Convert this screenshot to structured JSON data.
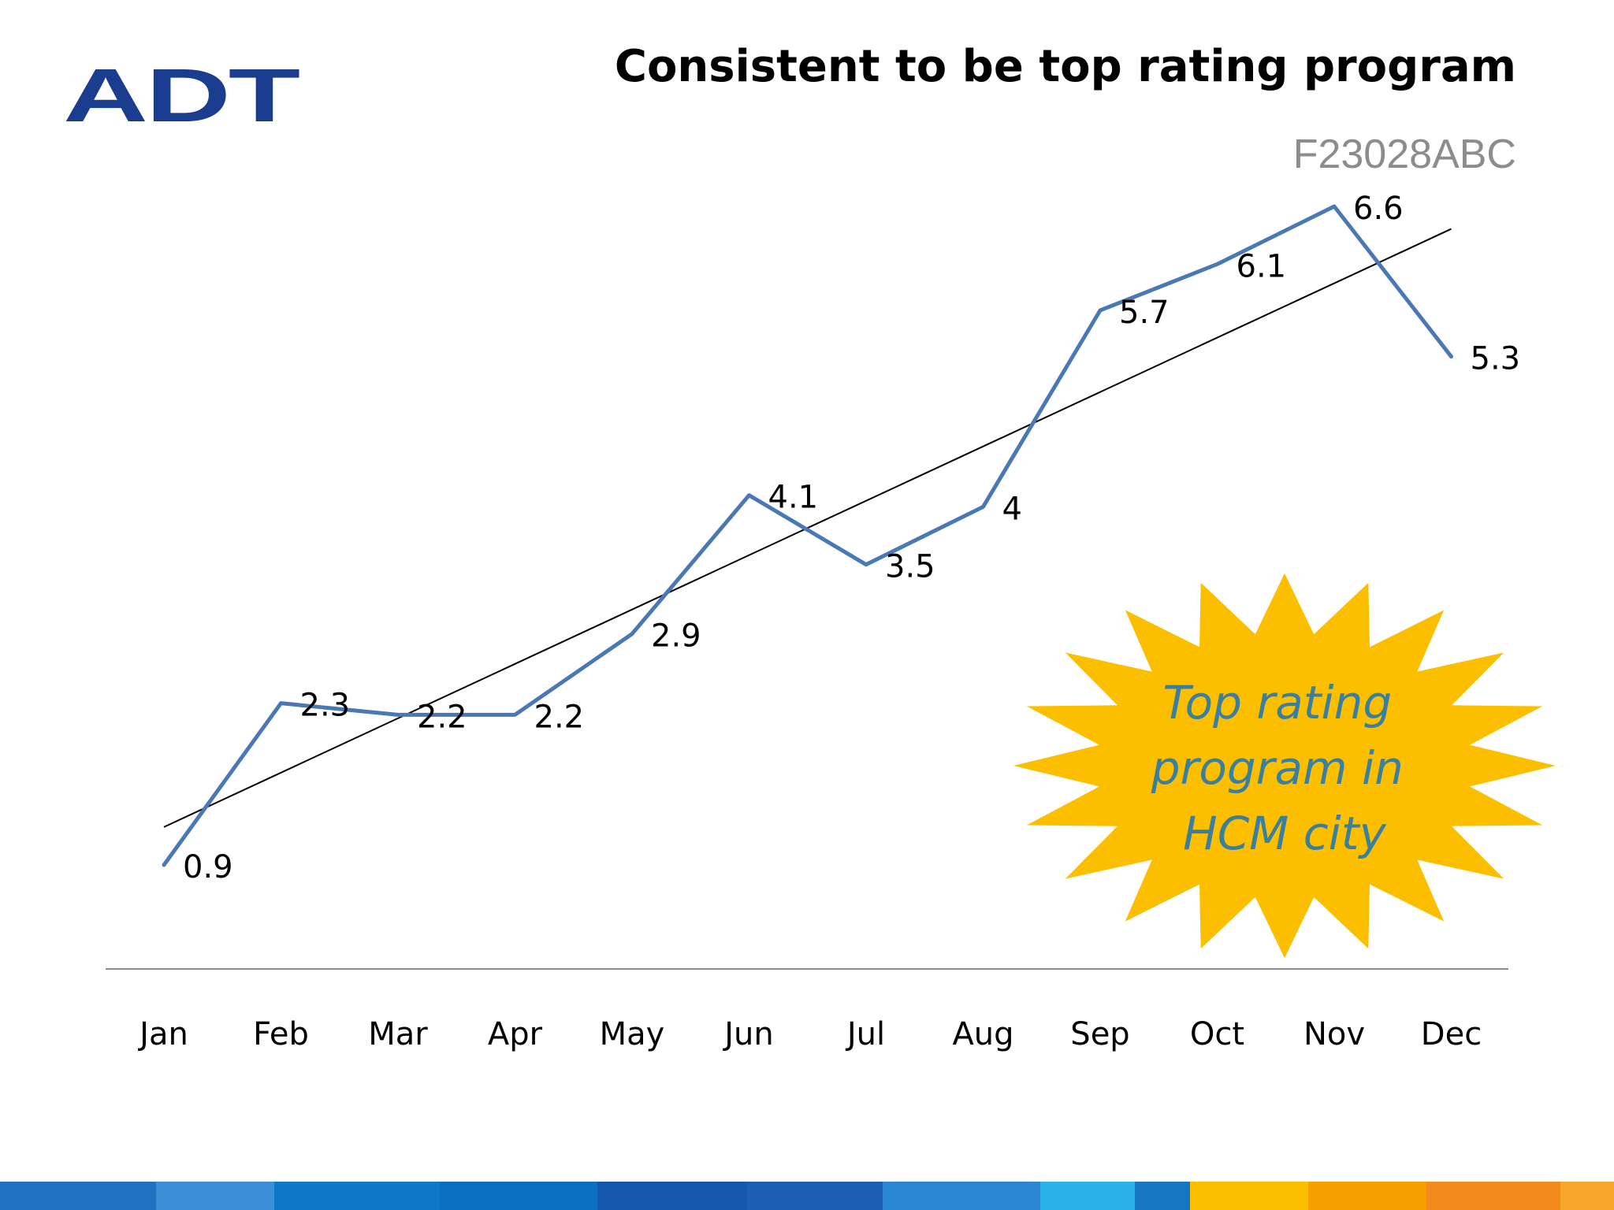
{
  "logo": {
    "text": "ADT",
    "color": "#1a3d8f"
  },
  "title": "Consistent to be top rating program",
  "subtitle": "F23028ABC",
  "callout": {
    "lines": [
      "Top rating",
      "program in",
      "HCM city"
    ],
    "fill": "#fcbf00",
    "text_color": "#3a7f9e"
  },
  "chart_data": {
    "type": "line",
    "categories": [
      "Jan",
      "Feb",
      "Mar",
      "Apr",
      "May",
      "Jun",
      "Jul",
      "Aug",
      "Sep",
      "Oct",
      "Nov",
      "Dec"
    ],
    "series": [
      {
        "values": [
          0.9,
          2.3,
          2.2,
          2.2,
          2.9,
          4.1,
          3.5,
          4,
          5.7,
          6.1,
          6.6,
          5.3
        ],
        "labels": [
          "0.9",
          "2.3",
          "2.2",
          "2.2",
          "2.9",
          "4.1",
          "3.5",
          "4",
          "5.7",
          "6.1",
          "6.6",
          "5.3"
        ],
        "color": "#4a78b5"
      }
    ],
    "trendline": {
      "type": "linear",
      "color": "#000000"
    },
    "ylim": [
      0,
      7.5
    ],
    "y_axis_visible": false,
    "grid": false,
    "legend": "none",
    "title": "",
    "xlabel": "",
    "ylabel": ""
  },
  "footer_colors": [
    "#1f73c2",
    "#3a8fd6",
    "#0d78c8",
    "#0b6fbf",
    "#1457ad",
    "#1a5fb4",
    "#2a86d2",
    "#2ab2e8",
    "#1577c4",
    "#fcbf00",
    "#f6a000",
    "#f38a1e",
    "#f7a52b"
  ]
}
